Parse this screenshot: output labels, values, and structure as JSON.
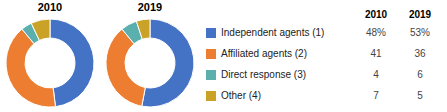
{
  "chart_data": [
    {
      "type": "pie",
      "title": "2010",
      "categories": [
        "Independent agents (1)",
        "Affiliated agents (2)",
        "Direct response (3)",
        "Other (4)"
      ],
      "values": [
        48,
        41,
        4,
        7
      ],
      "value_labels": [
        "48%",
        "41",
        "4",
        "7"
      ],
      "data_labels": true,
      "colors": [
        "#4472C4",
        "#ED7D31",
        "#5BAFAD",
        "#C9A227"
      ]
    },
    {
      "type": "pie",
      "title": "2019",
      "categories": [
        "Independent agents (1)",
        "Affiliated agents (2)",
        "Direct response (3)",
        "Other (4)"
      ],
      "values": [
        53,
        36,
        6,
        5
      ],
      "value_labels": [
        "53%",
        "36",
        "6",
        "5"
      ],
      "data_labels": true,
      "colors": [
        "#4472C4",
        "#ED7D31",
        "#5BAFAD",
        "#C9A227"
      ]
    }
  ]
}
